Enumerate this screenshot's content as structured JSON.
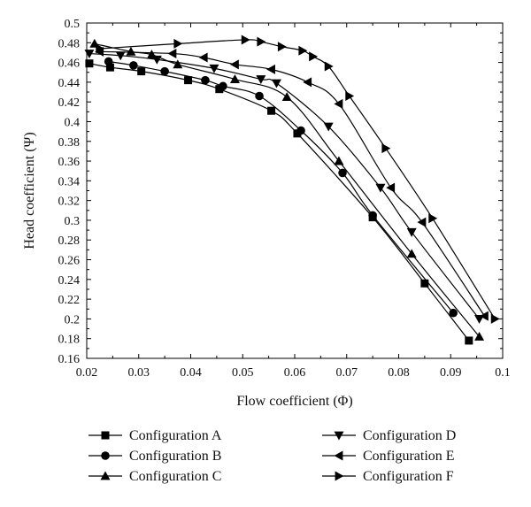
{
  "chart_data": {
    "type": "line",
    "xlabel": "Flow coefficient (Φ)",
    "ylabel": "Head coefficient (Ψ)",
    "xlim": [
      0.02,
      0.1
    ],
    "ylim": [
      0.16,
      0.5
    ],
    "xticks": [
      "0.02",
      "0.03",
      "0.04",
      "0.05",
      "0.06",
      "0.07",
      "0.08",
      "0.09",
      "0.1"
    ],
    "yticks": [
      "0.16",
      "0.18",
      "0.2",
      "0.22",
      "0.24",
      "0.26",
      "0.28",
      "0.3",
      "0.32",
      "0.34",
      "0.36",
      "0.38",
      "0.4",
      "0.42",
      "0.44",
      "0.46",
      "0.48",
      "0.5"
    ],
    "grid": false,
    "legend_position": "bottom",
    "series": [
      {
        "name": "Configuration A",
        "marker": "square",
        "x": [
          0.0205,
          0.0245,
          0.0305,
          0.0395,
          0.0455,
          0.0555,
          0.0605,
          0.075,
          0.085,
          0.0935
        ],
        "y": [
          0.459,
          0.455,
          0.451,
          0.442,
          0.433,
          0.411,
          0.388,
          0.303,
          0.236,
          0.178
        ]
      },
      {
        "name": "Configuration B",
        "marker": "circle",
        "x": [
          0.0242,
          0.029,
          0.035,
          0.0428,
          0.0462,
          0.0532,
          0.0612,
          0.0692,
          0.075,
          0.0905
        ],
        "y": [
          0.461,
          0.457,
          0.451,
          0.442,
          0.436,
          0.426,
          0.391,
          0.348,
          0.305,
          0.206
        ]
      },
      {
        "name": "Configuration C",
        "marker": "triangle-up",
        "x": [
          0.0215,
          0.0285,
          0.0325,
          0.0375,
          0.0485,
          0.0585,
          0.0685,
          0.0825,
          0.0955
        ],
        "y": [
          0.479,
          0.471,
          0.468,
          0.458,
          0.443,
          0.425,
          0.36,
          0.266,
          0.182
        ]
      },
      {
        "name": "Configuration D",
        "marker": "triangle-down",
        "x": [
          0.0205,
          0.0265,
          0.0335,
          0.0445,
          0.0535,
          0.0565,
          0.0665,
          0.0765,
          0.0825,
          0.0955
        ],
        "y": [
          0.469,
          0.467,
          0.463,
          0.454,
          0.443,
          0.439,
          0.395,
          0.333,
          0.288,
          0.2
        ]
      },
      {
        "name": "Configuration E",
        "marker": "triangle-left",
        "x": [
          0.0225,
          0.0365,
          0.0425,
          0.0485,
          0.0555,
          0.0625,
          0.0685,
          0.0785,
          0.0845,
          0.0965
        ],
        "y": [
          0.471,
          0.469,
          0.465,
          0.458,
          0.453,
          0.44,
          0.418,
          0.333,
          0.298,
          0.203
        ]
      },
      {
        "name": "Configuration F",
        "marker": "triangle-right",
        "x": [
          0.0225,
          0.0375,
          0.0505,
          0.0535,
          0.0575,
          0.0615,
          0.0635,
          0.0665,
          0.0705,
          0.0775,
          0.0865,
          0.0985
        ],
        "y": [
          0.474,
          0.479,
          0.483,
          0.481,
          0.476,
          0.472,
          0.466,
          0.456,
          0.426,
          0.373,
          0.302,
          0.2
        ]
      }
    ]
  }
}
